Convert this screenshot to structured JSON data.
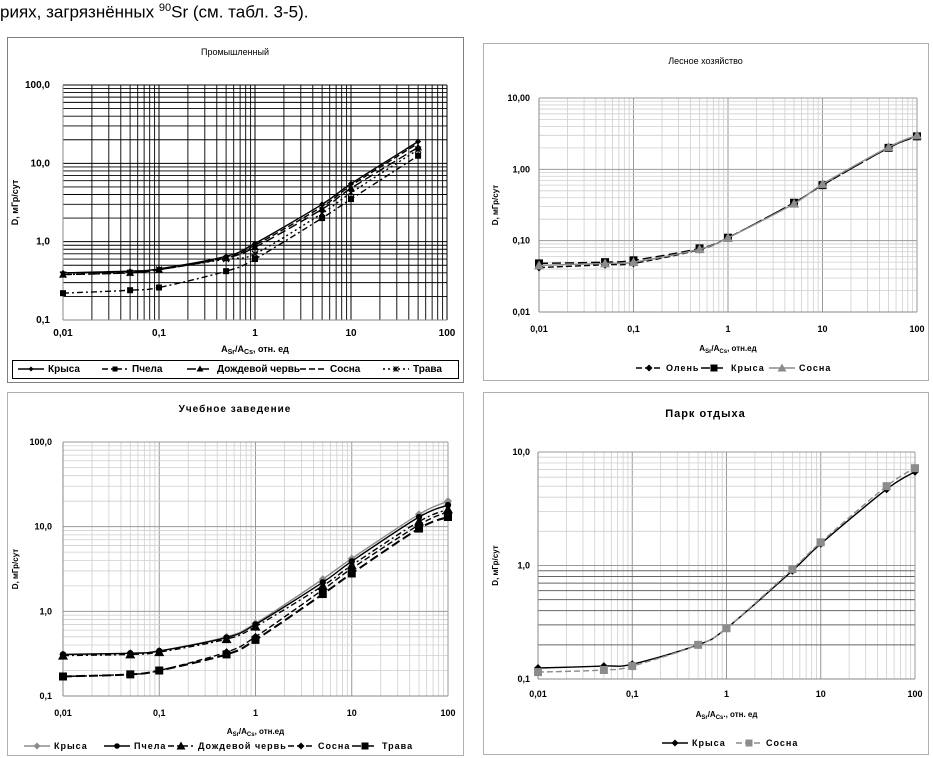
{
  "header": {
    "prefix": "риях, загрязнённых ",
    "sup": "90",
    "suffix": "Sr (см. табл. 3-5)."
  },
  "chart_data": [
    {
      "id": "industrial",
      "type": "line",
      "title": "Промышленный",
      "xlabel_main": "A",
      "xlabel_sub1": "Sr",
      "xlabel_mid": "/A",
      "xlabel_sub2": "Cs",
      "xlabel_tail": ", отн. ед",
      "ylabel": "D, мГр/сут",
      "xscale": "log",
      "yscale": "log",
      "xlim": [
        0.01,
        100
      ],
      "ylim": [
        0.1,
        100
      ],
      "xticks": [
        "0,01",
        "0,1",
        "1",
        "10",
        "100"
      ],
      "yticks": [
        "0,1",
        "1,0",
        "10,0",
        "100,0"
      ],
      "grid": true,
      "legend": "bottom-boxed",
      "x": [
        0.01,
        0.05,
        0.1,
        0.5,
        1,
        5,
        10,
        50
      ],
      "series": [
        {
          "name": "Крыса",
          "values": [
            0.4,
            0.42,
            0.45,
            0.65,
            0.95,
            3.0,
            5.5,
            19
          ],
          "style": "solid",
          "marker": "diamond",
          "color": "#000000"
        },
        {
          "name": "Пчела",
          "values": [
            0.22,
            0.24,
            0.26,
            0.42,
            0.6,
            2.0,
            3.5,
            12.5
          ],
          "style": "dashdot",
          "marker": "square",
          "color": "#000000"
        },
        {
          "name": "Дождевой червь",
          "values": [
            0.38,
            0.4,
            0.44,
            0.62,
            0.85,
            2.6,
            4.8,
            16
          ],
          "style": "longdash",
          "marker": "triangle",
          "color": "#000000"
        },
        {
          "name": "Сосна",
          "values": [
            0.4,
            0.41,
            0.44,
            0.63,
            0.9,
            2.8,
            5.2,
            18
          ],
          "style": "dash",
          "marker": "none",
          "color": "#000000"
        },
        {
          "name": "Трава",
          "values": [
            0.38,
            0.4,
            0.44,
            0.6,
            0.7,
            2.3,
            4.2,
            15
          ],
          "style": "dot",
          "marker": "star",
          "color": "#000000"
        }
      ]
    },
    {
      "id": "forestry",
      "type": "line",
      "title": "Лесное хозяйство",
      "xlabel_main": "A",
      "xlabel_sub1": "Sr",
      "xlabel_mid": "/A",
      "xlabel_sub2": "Cs",
      "xlabel_tail": ", отн.ед",
      "ylabel": "D, мГр/сут",
      "xscale": "log",
      "yscale": "log",
      "xlim": [
        0.01,
        100
      ],
      "ylim": [
        0.01,
        10
      ],
      "xticks": [
        "0,01",
        "0,1",
        "1",
        "10",
        "100"
      ],
      "yticks": [
        "0,01",
        "0,10",
        "1,00",
        "10,00"
      ],
      "grid": true,
      "legend": "bottom",
      "x": [
        0.01,
        0.05,
        0.1,
        0.5,
        1,
        5,
        10,
        50,
        100
      ],
      "series": [
        {
          "name": "Олень",
          "values": [
            0.042,
            0.046,
            0.048,
            0.075,
            0.11,
            0.34,
            0.6,
            2.0,
            2.9
          ],
          "style": "dash",
          "marker": "diamond",
          "color": "#000000"
        },
        {
          "name": "Крыса",
          "values": [
            0.048,
            0.05,
            0.053,
            0.078,
            0.11,
            0.34,
            0.6,
            2.0,
            2.9
          ],
          "style": "longdash",
          "marker": "square",
          "color": "#000000"
        },
        {
          "name": "Сосна",
          "values": [
            0.045,
            0.048,
            0.05,
            0.076,
            0.11,
            0.33,
            0.62,
            2.05,
            3.0
          ],
          "style": "solid",
          "marker": "triangle",
          "color": "#8c8c8c"
        }
      ]
    },
    {
      "id": "school",
      "type": "line",
      "title": "Учебное заведение",
      "xlabel_main": "A",
      "xlabel_sub1": "Sr",
      "xlabel_mid": "/A",
      "xlabel_sub2": "Cs",
      "xlabel_tail": ", отн.ед",
      "ylabel": "D, мГр/сут",
      "xscale": "log",
      "yscale": "log",
      "xlim": [
        0.01,
        100
      ],
      "ylim": [
        0.1,
        100
      ],
      "xticks": [
        "0,01",
        "0,1",
        "1",
        "10",
        "100"
      ],
      "yticks": [
        "0,1",
        "1,0",
        "10,0",
        "100,0"
      ],
      "grid": true,
      "legend": "bottom",
      "x": [
        0.01,
        0.05,
        0.1,
        0.5,
        1,
        5,
        10,
        50,
        100
      ],
      "series": [
        {
          "name": "Крыса",
          "values": [
            0.31,
            0.32,
            0.34,
            0.5,
            0.72,
            2.4,
            4.2,
            14,
            20
          ],
          "style": "solid",
          "marker": "diamond",
          "color": "#8c8c8c"
        },
        {
          "name": "Пчела",
          "values": [
            0.31,
            0.32,
            0.34,
            0.49,
            0.7,
            2.2,
            3.9,
            13,
            18
          ],
          "style": "solid",
          "marker": "circle",
          "color": "#000000"
        },
        {
          "name": "Дождевой червь",
          "values": [
            0.3,
            0.31,
            0.33,
            0.47,
            0.66,
            2.0,
            3.5,
            11.5,
            16
          ],
          "style": "dashdot",
          "marker": "triangle",
          "color": "#000000"
        },
        {
          "name": "Сосна",
          "values": [
            0.17,
            0.18,
            0.2,
            0.33,
            0.5,
            1.8,
            3.2,
            10.5,
            15
          ],
          "style": "dash",
          "marker": "diamond",
          "color": "#000000"
        },
        {
          "name": "Трава",
          "values": [
            0.17,
            0.18,
            0.2,
            0.31,
            0.46,
            1.6,
            2.8,
            9.5,
            13
          ],
          "style": "longdash",
          "marker": "square",
          "color": "#000000"
        }
      ]
    },
    {
      "id": "park",
      "type": "line",
      "title": "Парк отдыха",
      "xlabel_main": "A",
      "xlabel_sub1": "Sr",
      "xlabel_mid": "/A",
      "xlabel_sub2": "Cs",
      "xlabel_tail": "., отн. ед",
      "ylabel": "D, мГр/сут",
      "xscale": "log",
      "yscale": "log",
      "xlim": [
        0.01,
        100
      ],
      "ylim": [
        0.1,
        10
      ],
      "xticks": [
        "0,01",
        "0,1",
        "1",
        "10",
        "100"
      ],
      "yticks": [
        "0,1",
        "1,0",
        "10,0"
      ],
      "grid": true,
      "legend": "bottom",
      "x": [
        0.01,
        0.05,
        0.1,
        0.5,
        1,
        5,
        10,
        50,
        100
      ],
      "series": [
        {
          "name": "Крыса",
          "values": [
            0.125,
            0.13,
            0.135,
            0.2,
            0.28,
            0.9,
            1.55,
            4.7,
            6.7
          ],
          "style": "solid",
          "marker": "diamond",
          "color": "#000000"
        },
        {
          "name": "Сосна",
          "values": [
            0.115,
            0.12,
            0.13,
            0.2,
            0.28,
            0.93,
            1.6,
            5.0,
            7.2
          ],
          "style": "dash",
          "marker": "square",
          "color": "#8c8c8c"
        }
      ]
    }
  ]
}
